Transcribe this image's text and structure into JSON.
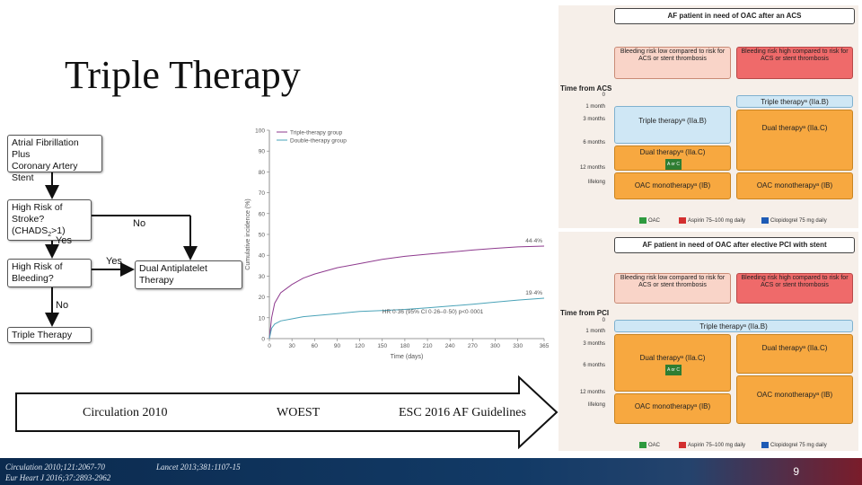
{
  "slide": {
    "title": "Triple Therapy",
    "page_number": "9"
  },
  "flowchart": {
    "box_af": "Atrial Fibrillation\nPlus\nCoronary Artery Stent",
    "box_stroke": "High Risk of\nStroke?\n(CHADS",
    "box_stroke_sub": "2",
    "box_stroke_end": ">1)",
    "box_bleed": "High Risk of\nBleeding?",
    "box_triple": "Triple Therapy",
    "box_dual": "Dual Antiplatelet\nTherapy",
    "label_no_1": "No",
    "label_yes_1": "Yes",
    "label_yes_2": "Yes",
    "label_no_2": "No"
  },
  "chart_data": {
    "type": "line",
    "xlabel": "Time (days)",
    "ylabel": "Cumulative incidence (%)",
    "xlim": [
      0,
      365
    ],
    "ylim": [
      0,
      100
    ],
    "x_ticks": [
      0,
      30,
      60,
      90,
      120,
      150,
      180,
      210,
      240,
      270,
      300,
      330,
      365
    ],
    "y_ticks": [
      0,
      10,
      20,
      30,
      40,
      50,
      60,
      70,
      80,
      90,
      100
    ],
    "legend_position": "top-left",
    "annotation": "HR 0·36 (95% CI 0·26–0·50) p<0·0001",
    "series": [
      {
        "name": "Triple-therapy group",
        "color": "#8e3a8e",
        "end_label": "44·4%",
        "x": [
          0,
          3,
          7,
          15,
          30,
          45,
          60,
          90,
          120,
          150,
          180,
          210,
          240,
          270,
          300,
          330,
          365
        ],
        "y": [
          0,
          10,
          17,
          22,
          26,
          29,
          31,
          34,
          36,
          38,
          39.5,
          40.5,
          41.5,
          42.5,
          43.3,
          44,
          44.4
        ]
      },
      {
        "name": "Double-therapy group",
        "color": "#4aa3b8",
        "end_label": "19·4%",
        "x": [
          0,
          3,
          7,
          15,
          30,
          45,
          60,
          90,
          120,
          150,
          180,
          210,
          240,
          270,
          300,
          330,
          365
        ],
        "y": [
          0,
          5,
          7,
          8.5,
          9.5,
          10.5,
          11,
          12,
          13,
          13.5,
          14,
          14.8,
          15.6,
          16.5,
          17.5,
          18.5,
          19.4
        ]
      }
    ]
  },
  "arrow_band": {
    "ref_circulation": "Circulation 2010",
    "ref_woest": "WOEST",
    "ref_esc": "ESC 2016 AF Guidelines"
  },
  "panel_acs": {
    "header": "AF patient in need of OAC after an ACS",
    "low_risk": "Bleeding risk low compared to risk for ACS or stent thrombosis",
    "high_risk": "Bleeding risk high compared to risk for ACS or stent thrombosis",
    "time_title": "Time from ACS",
    "times": [
      "0",
      "1 month",
      "3 months",
      "6 months",
      "12 months",
      "lifelong"
    ],
    "triple_high": "Triple therapyᵃ (IIa.B)",
    "triple_low": "Triple therapyᵃ (IIa.B)",
    "dual_high": "Dual therapyᵃ (IIa.C)",
    "dual_low": "Dual therapyᵃ (IIa.C)",
    "oac_low": "OAC monotherapyᵃ (IB)",
    "oac_high": "OAC monotherapyᵃ (IB)",
    "tag_aorc": "A or C",
    "legend": [
      "OAC",
      "Aspirin 75–100 mg daily",
      "Clopidogrel 75 mg daily"
    ]
  },
  "panel_pci": {
    "header": "AF patient in need of OAC after elective PCI with stent",
    "low_risk": "Bleeding risk low compared to risk for ACS or stent thrombosis",
    "high_risk": "Bleeding risk high compared to risk for ACS or stent thrombosis",
    "time_title": "Time from PCI",
    "times": [
      "0",
      "1 month",
      "3 months",
      "6 months",
      "12 months",
      "lifelong"
    ],
    "triple": "Triple therapyᵃ (IIa.B)",
    "dual_high": "Dual therapyᵃ (IIa.C)",
    "dual_low": "Dual therapyᵃ (IIa.C)",
    "oac_high": "OAC monotherapyᵃ (IB)",
    "oac_low": "OAC monotherapyᵃ (IB)",
    "tag_aorc": "A or C",
    "legend": [
      "OAC",
      "Aspirin 75–100 mg daily",
      "Clopidogrel 75 mg daily"
    ]
  },
  "colors": {
    "oac": "#2e9a3e",
    "aspirin": "#d32f2f",
    "clopidogrel": "#1e5bb5"
  },
  "footer": {
    "ref_1": "Circulation 2010;121:2067-70",
    "ref_2": "Eur Heart J 2016;37:2893-2962",
    "ref_3": "Lancet 2013;381:1107-15"
  }
}
